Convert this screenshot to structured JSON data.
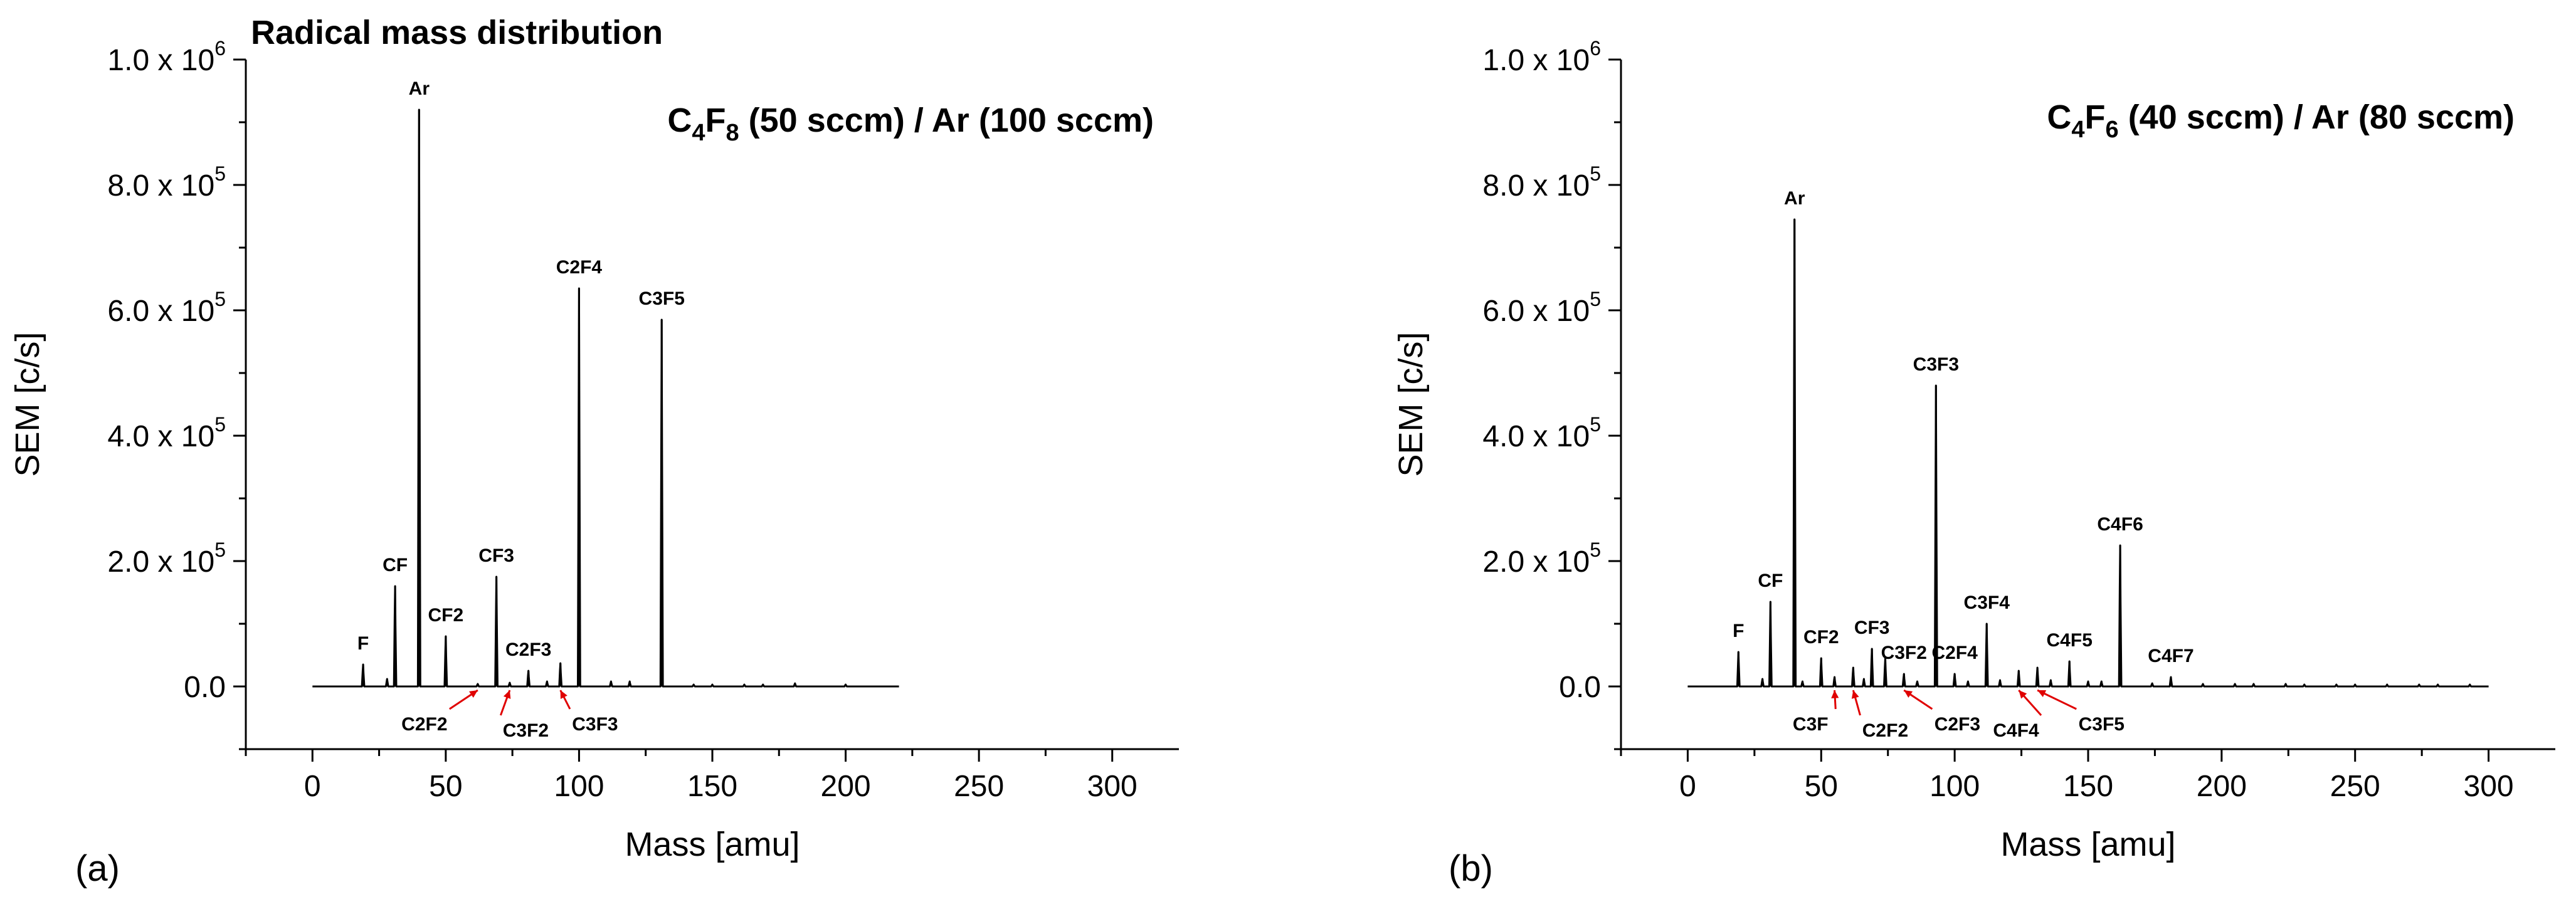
{
  "figure": {
    "panel_a_label": "(a)",
    "panel_b_label": "(b)"
  },
  "chart_data": [
    {
      "type": "line",
      "panel": "(a)",
      "title": "Radical mass distribution",
      "condition": {
        "parts": [
          [
            "C",
            ""
          ],
          [
            "4",
            "sub"
          ],
          [
            "F",
            ""
          ],
          [
            "8",
            "sub"
          ],
          [
            " (50 sccm) / Ar (100 sccm)",
            ""
          ]
        ]
      },
      "xlabel": "Mass [amu]",
      "ylabel": "SEM [c/s]",
      "xlim": [
        -25,
        325
      ],
      "ylim": [
        -100000,
        1000000
      ],
      "xticks": [
        0,
        50,
        100,
        150,
        200,
        250,
        300
      ],
      "yticks": [
        {
          "value": 0,
          "mant": "0.0",
          "exp": ""
        },
        {
          "value": 200000,
          "mant": "2.0 x 10",
          "exp": "5"
        },
        {
          "value": 400000,
          "mant": "4.0 x 10",
          "exp": "5"
        },
        {
          "value": 600000,
          "mant": "6.0 x 10",
          "exp": "5"
        },
        {
          "value": 800000,
          "mant": "8.0 x 10",
          "exp": "5"
        },
        {
          "value": 1000000,
          "mant": "1.0 x 10",
          "exp": "6"
        }
      ],
      "x_range": [
        0,
        220
      ],
      "series": [
        {
          "peaks": [
            [
              19,
              35000
            ],
            [
              28,
              12000
            ],
            [
              31,
              160000
            ],
            [
              40,
              920000
            ],
            [
              50,
              80000
            ],
            [
              62,
              4000
            ],
            [
              69,
              175000
            ],
            [
              74,
              6000
            ],
            [
              81,
              25000
            ],
            [
              88,
              8000
            ],
            [
              93,
              37000
            ],
            [
              100,
              635000
            ],
            [
              112,
              8000
            ],
            [
              119,
              8000
            ],
            [
              131,
              585000
            ],
            [
              143,
              3000
            ],
            [
              150,
              3000
            ],
            [
              162,
              3000
            ],
            [
              169,
              3000
            ],
            [
              181,
              5000
            ],
            [
              200,
              3000
            ]
          ]
        }
      ],
      "peak_labels": [
        {
          "text": "F",
          "x": 19,
          "y": 35000
        },
        {
          "text": "CF",
          "x": 31,
          "y": 160000
        },
        {
          "text": "Ar",
          "x": 40,
          "y": 920000
        },
        {
          "text": "CF2",
          "x": 50,
          "y": 80000
        },
        {
          "text": "CF3",
          "x": 69,
          "y": 175000
        },
        {
          "text": "C2F3",
          "x": 81,
          "y": 25000
        },
        {
          "text": "C2F4",
          "x": 100,
          "y": 635000
        },
        {
          "text": "C3F5",
          "x": 131,
          "y": 585000
        }
      ],
      "below_labels": [
        {
          "text": "C2F2",
          "x": 62,
          "arrow": true,
          "ax": 62,
          "tx": 42
        },
        {
          "text": "C3F2",
          "x": 74,
          "arrow": true,
          "ax": 74,
          "tx": 80
        },
        {
          "text": "C3F3",
          "x": 93,
          "arrow": true,
          "ax": 93,
          "tx": 106
        }
      ]
    },
    {
      "type": "line",
      "panel": "(b)",
      "title": "",
      "condition": {
        "parts": [
          [
            "C",
            ""
          ],
          [
            "4",
            "sub"
          ],
          [
            "F",
            ""
          ],
          [
            "6",
            "sub"
          ],
          [
            " (40 sccm) / Ar (80 sccm)",
            ""
          ]
        ]
      },
      "xlabel": "Mass [amu]",
      "ylabel": "SEM [c/s]",
      "xlim": [
        -25,
        325
      ],
      "ylim": [
        -100000,
        1000000
      ],
      "xticks": [
        0,
        50,
        100,
        150,
        200,
        250,
        300
      ],
      "yticks": [
        {
          "value": 0,
          "mant": "0.0",
          "exp": ""
        },
        {
          "value": 200000,
          "mant": "2.0 x 10",
          "exp": "5"
        },
        {
          "value": 400000,
          "mant": "4.0 x 10",
          "exp": "5"
        },
        {
          "value": 600000,
          "mant": "6.0 x 10",
          "exp": "5"
        },
        {
          "value": 800000,
          "mant": "8.0 x 10",
          "exp": "5"
        },
        {
          "value": 1000000,
          "mant": "1.0 x 10",
          "exp": "6"
        }
      ],
      "x_range": [
        0,
        300
      ],
      "series": [
        {
          "peaks": [
            [
              19,
              55000
            ],
            [
              28,
              12000
            ],
            [
              31,
              135000
            ],
            [
              40,
              745000
            ],
            [
              43,
              8000
            ],
            [
              50,
              45000
            ],
            [
              55,
              15000
            ],
            [
              62,
              30000
            ],
            [
              66,
              12000
            ],
            [
              69,
              60000
            ],
            [
              74,
              45000
            ],
            [
              81,
              20000
            ],
            [
              86,
              8000
            ],
            [
              93,
              480000
            ],
            [
              100,
              20000
            ],
            [
              105,
              8000
            ],
            [
              112,
              100000
            ],
            [
              117,
              10000
            ],
            [
              124,
              25000
            ],
            [
              131,
              30000
            ],
            [
              136,
              10000
            ],
            [
              143,
              40000
            ],
            [
              150,
              8000
            ],
            [
              155,
              8000
            ],
            [
              162,
              225000
            ],
            [
              174,
              5000
            ],
            [
              181,
              15000
            ],
            [
              193,
              4000
            ],
            [
              205,
              4000
            ],
            [
              212,
              4000
            ],
            [
              224,
              4000
            ],
            [
              231,
              3000
            ],
            [
              243,
              3000
            ],
            [
              250,
              3000
            ],
            [
              262,
              3000
            ],
            [
              274,
              3000
            ],
            [
              281,
              3000
            ],
            [
              293,
              3000
            ]
          ]
        }
      ],
      "peak_labels": [
        {
          "text": "F",
          "x": 19,
          "y": 55000
        },
        {
          "text": "CF",
          "x": 31,
          "y": 135000
        },
        {
          "text": "Ar",
          "x": 40,
          "y": 745000
        },
        {
          "text": "CF2",
          "x": 50,
          "y": 45000
        },
        {
          "text": "CF3",
          "x": 69,
          "y": 60000
        },
        {
          "text": "C3F2",
          "x": 81,
          "y": 20000
        },
        {
          "text": "C2F4",
          "x": 100,
          "y": 20000
        },
        {
          "text": "C3F3",
          "x": 93,
          "y": 480000
        },
        {
          "text": "C3F4",
          "x": 112,
          "y": 100000
        },
        {
          "text": "C4F5",
          "x": 143,
          "y": 40000
        },
        {
          "text": "C4F6",
          "x": 162,
          "y": 225000
        },
        {
          "text": "C4F7",
          "x": 181,
          "y": 15000
        }
      ],
      "below_labels": [
        {
          "text": "C3F",
          "x": 55,
          "arrow": true,
          "ax": 55,
          "tx": 46
        },
        {
          "text": "C2F2",
          "x": 62,
          "arrow": true,
          "ax": 62,
          "tx": 74
        },
        {
          "text": "C2F3",
          "x": 81,
          "arrow": true,
          "ax": 81,
          "tx": 101
        },
        {
          "text": "C4F4",
          "x": 124,
          "arrow": true,
          "ax": 124,
          "tx": 123
        },
        {
          "text": "C3F5",
          "x": 131,
          "arrow": true,
          "ax": 131,
          "tx": 155
        }
      ]
    }
  ]
}
